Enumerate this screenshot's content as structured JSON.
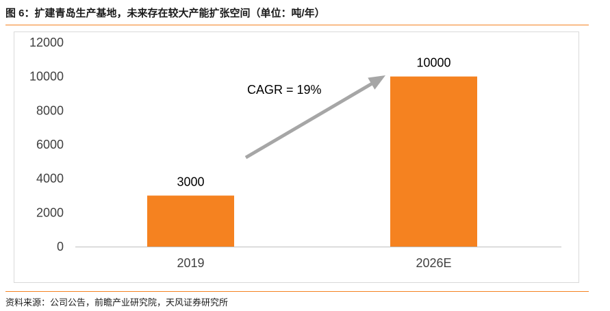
{
  "figure": {
    "title": "图 6：扩建青岛生产基地，未来存在较大产能扩张空间（单位：吨/年）",
    "source": "资料来源：公司公告，前瞻产业研究院，天风证券研究所"
  },
  "chart_data": {
    "type": "bar",
    "categories": [
      "2019",
      "2026E"
    ],
    "values": [
      3000,
      10000
    ],
    "data_labels": [
      "3000",
      "10000"
    ],
    "ylim": [
      0,
      12000
    ],
    "yticks": [
      0,
      2000,
      4000,
      6000,
      8000,
      10000,
      12000
    ],
    "grid": false,
    "legend": "none",
    "bar_color": "#f58220",
    "annotation": {
      "text": "CAGR = 19%",
      "arrow_color": "#a6a6a6"
    }
  }
}
